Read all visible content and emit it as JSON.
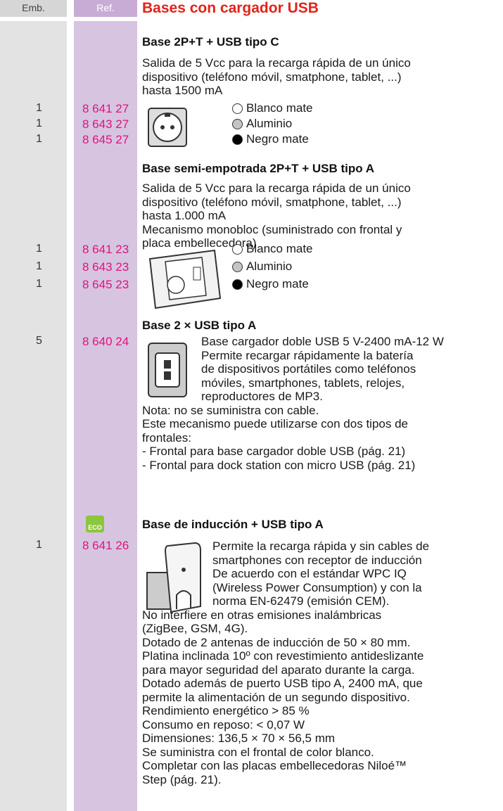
{
  "header": {
    "emb": "Emb.",
    "ref": "Ref.",
    "title": "Bases con cargador USB"
  },
  "sections": [
    {
      "title": "Base 2P+T + USB tipo C",
      "text": [
        "Salida de 5 Vcc para la recarga rápida de un único",
        "dispositivo (teléfono móvil, smatphone, tablet, ...)",
        "hasta 1500 mA"
      ],
      "items": [
        {
          "emb": "1",
          "ref": "8 641 27",
          "finish": "Blanco mate"
        },
        {
          "emb": "1",
          "ref": "8 643 27",
          "finish": "Aluminio"
        },
        {
          "emb": "1",
          "ref": "8 645 27",
          "finish": "Negro mate"
        }
      ]
    },
    {
      "title": "Base semi-empotrada 2P+T + USB tipo A",
      "text": [
        "Salida de 5 Vcc para la recarga rápida de un único",
        "dispositivo (teléfono móvil, smatphone, tablet, ...)",
        "hasta 1.000 mA",
        "Mecanismo monobloc (suministrado con frontal y",
        "placa embellecedora)"
      ],
      "items": [
        {
          "emb": "1",
          "ref": "8 641 23",
          "finish": "Blanco mate"
        },
        {
          "emb": "1",
          "ref": "8 643 23",
          "finish": "Aluminio"
        },
        {
          "emb": "1",
          "ref": "8 645 23",
          "finish": "Negro mate"
        }
      ]
    },
    {
      "title": "Base 2 × USB tipo A",
      "text": [
        "Base cargador doble USB 5 V-2400 mA-12 W",
        "Permite recargar rápidamente la batería",
        "de dispositivos portátiles como teléfonos",
        "móviles, smartphones, tablets, relojes,",
        "reproductores de MP3.",
        "Nota: no se suministra con cable.",
        "Este mecanismo puede utilizarse con dos tipos de",
        "frontales:",
        "- Frontal para base cargador doble USB (pág. 21)",
        "- Frontal para dock station con micro USB (pág. 21)"
      ],
      "items": [
        {
          "emb": "5",
          "ref": "8 640 24"
        }
      ]
    },
    {
      "title": "Base de inducción + USB tipo A",
      "badge": "ECO",
      "text": [
        "Permite la recarga rápida y sin cables de",
        "smartphones con receptor de inducción",
        "De acuerdo con el estándar WPC IQ",
        "(Wireless Power Consumption) y con la",
        "norma EN-62479 (emisión CEM).",
        "No interfiere en otras emisiones inalámbricas",
        "(ZigBee, GSM, 4G).",
        "Dotado de 2 antenas de inducción de 50 × 80 mm.",
        "Platina inclinada 10º con revestimiento antideslizante",
        "para mayor seguridad del aparato durante la carga.",
        "Dotado además de puerto USB tipo A, 2400 mA, que",
        "permite la alimentación de un segundo dispositivo.",
        "Rendimiento energético > 85 %",
        "Consumo en reposo: < 0,07 W",
        "Dimensiones: 136,5 × 70 × 56,5 mm",
        "Se suministra con el frontal de color blanco.",
        "Completar con las placas embellecedoras Niloé™",
        "Step (pág. 21)."
      ],
      "items": [
        {
          "emb": "1",
          "ref": "8 641 26"
        }
      ]
    }
  ]
}
